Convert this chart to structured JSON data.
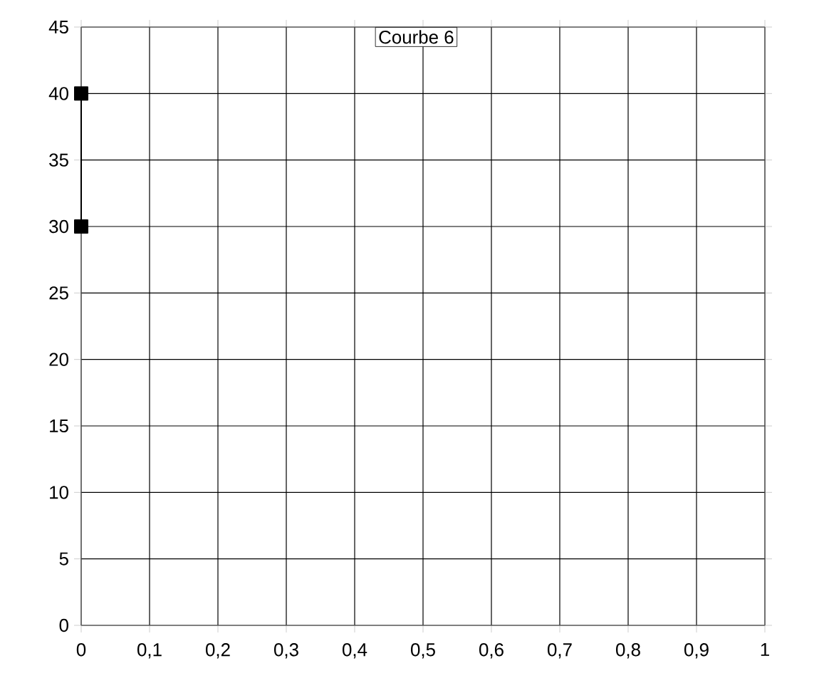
{
  "chart_data": {
    "type": "line",
    "title": "Courbe 6",
    "xlim": [
      0,
      1
    ],
    "ylim": [
      0,
      45
    ],
    "xticks": [
      0,
      {
        "value": 0.1,
        "label": "0,1"
      },
      {
        "value": 0.2,
        "label": "0,2"
      },
      {
        "value": 0.3,
        "label": "0,3"
      },
      {
        "value": 0.4,
        "label": "0,4"
      },
      {
        "value": 0.5,
        "label": "0,5"
      },
      {
        "value": 0.6,
        "label": "0,6"
      },
      {
        "value": 0.7,
        "label": "0,7"
      },
      {
        "value": 0.8,
        "label": "0,8"
      },
      {
        "value": 0.9,
        "label": "0,9"
      },
      1
    ],
    "yticks": [
      0,
      5,
      10,
      15,
      20,
      25,
      30,
      35,
      40,
      45
    ],
    "series": [
      {
        "color": "#000000",
        "x": [
          0,
          0
        ],
        "values": [
          30,
          40
        ]
      }
    ],
    "grid": true,
    "marker": "square",
    "line_style": "solid"
  }
}
